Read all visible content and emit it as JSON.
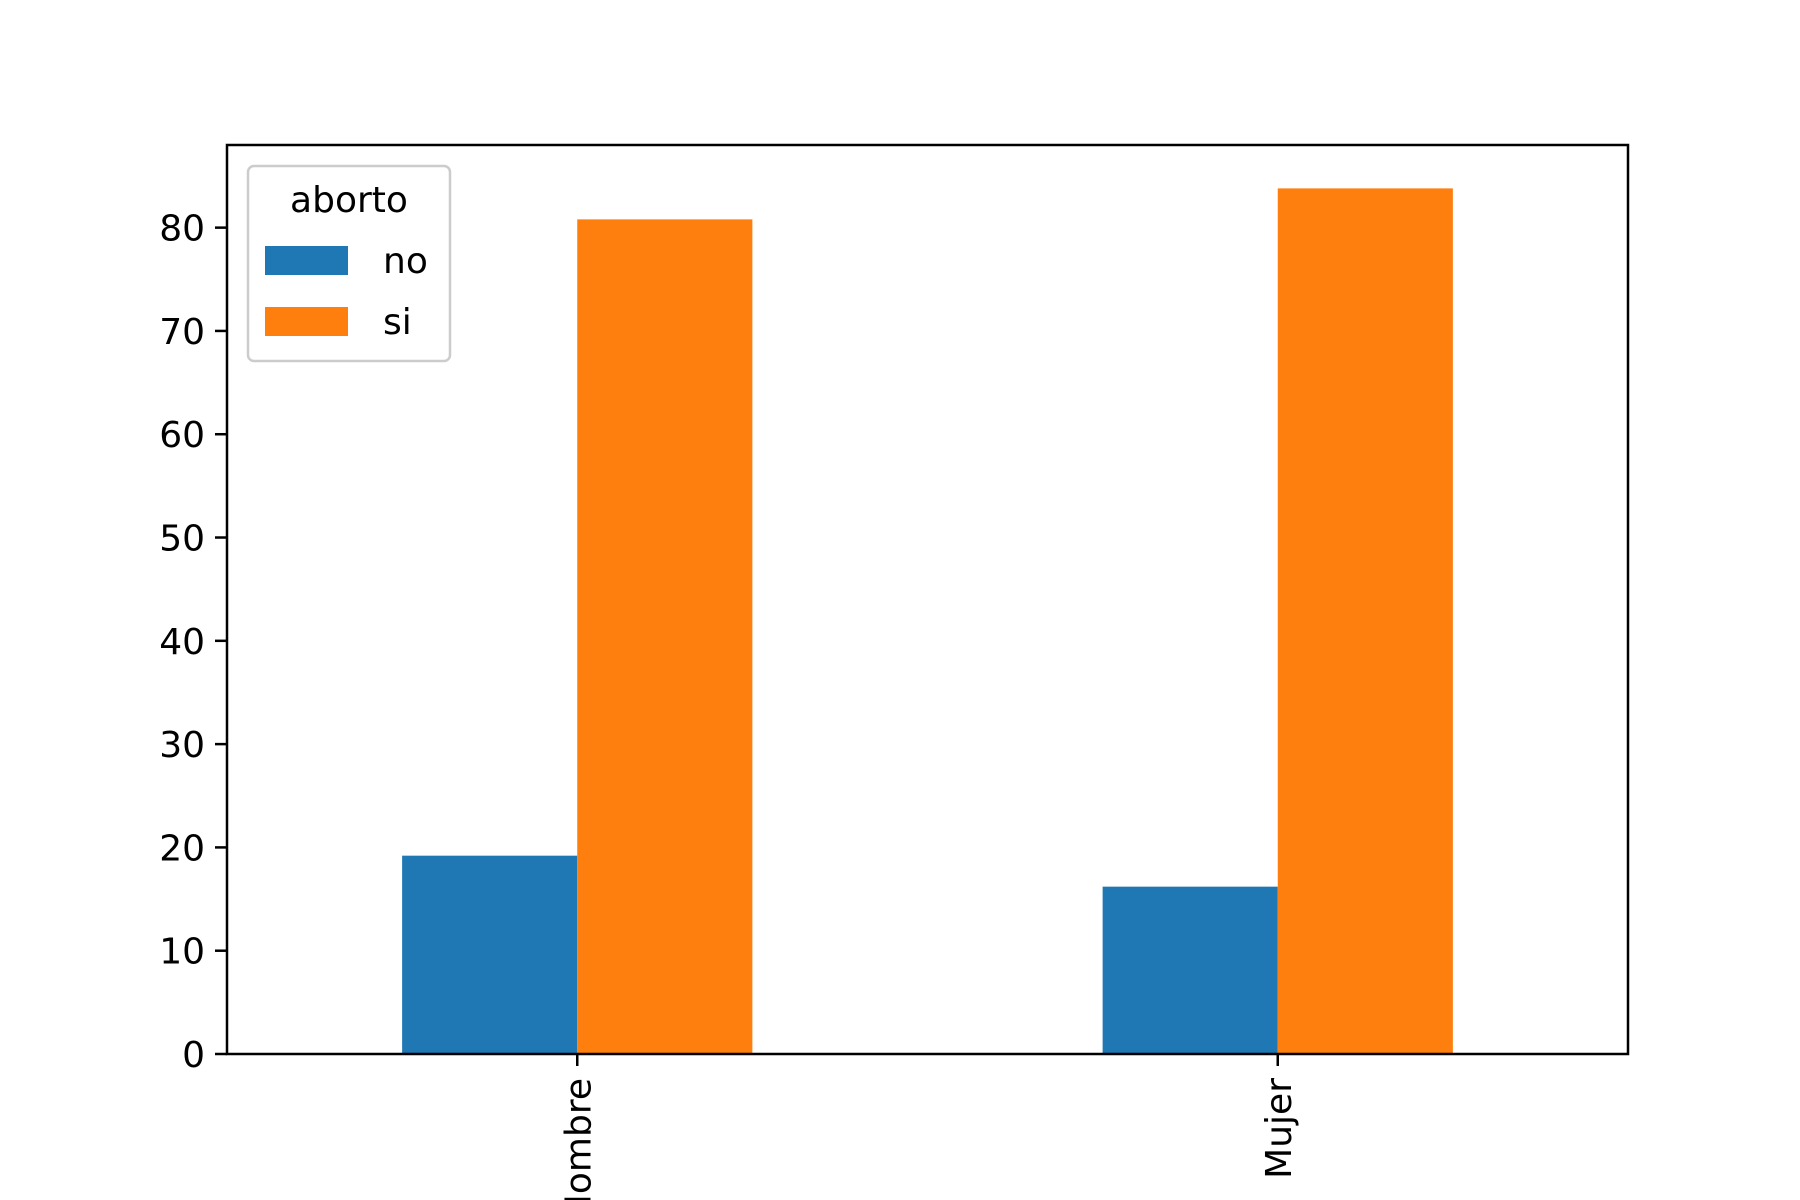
{
  "chart_data": {
    "type": "bar",
    "title": "",
    "xlabel": "",
    "ylabel": "",
    "categories": [
      "Hombre",
      "Mujer"
    ],
    "series": [
      {
        "name": "no",
        "values": [
          19.2,
          16.2
        ],
        "color": "#1f77b4"
      },
      {
        "name": "si",
        "values": [
          80.8,
          83.8
        ],
        "color": "#ff7f0e"
      }
    ],
    "ylim": [
      0,
      88
    ],
    "yticks": [
      0,
      10,
      20,
      30,
      40,
      50,
      60,
      70,
      80
    ],
    "grid": false,
    "legend": {
      "title": "aborto",
      "placement": "upper-left"
    },
    "xtick_rotation": "vertical"
  }
}
